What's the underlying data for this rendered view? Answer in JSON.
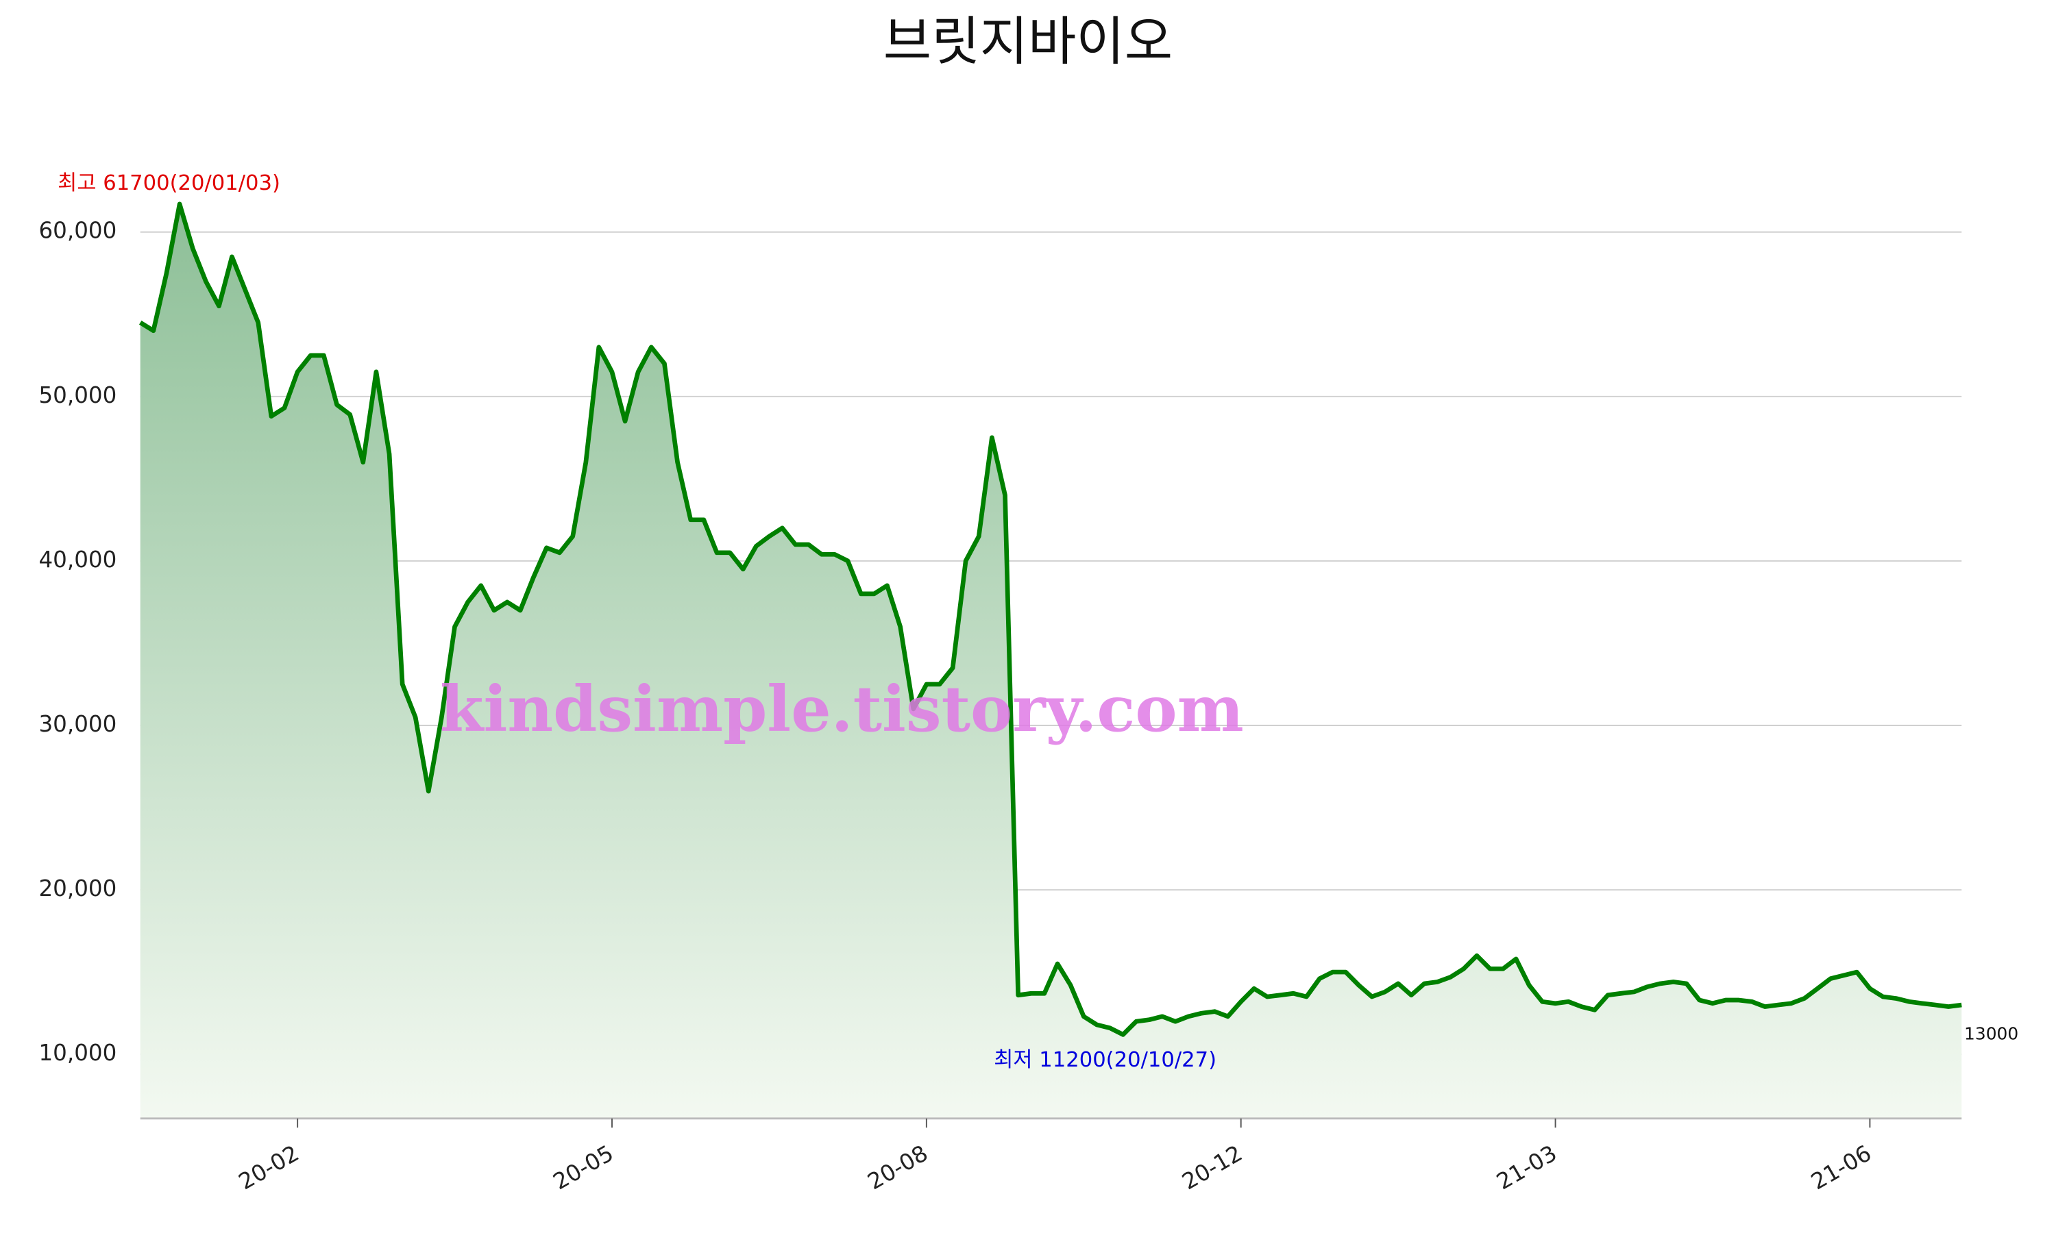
{
  "chart_data": {
    "type": "area",
    "title": "브릿지바이오",
    "values": [
      54500,
      54000,
      57500,
      61700,
      59000,
      57000,
      55500,
      58500,
      56500,
      54500,
      48800,
      49300,
      51500,
      52500,
      52500,
      49500,
      48900,
      46000,
      51500,
      46500,
      32500,
      30500,
      26000,
      30500,
      36000,
      37500,
      38500,
      37000,
      37500,
      37000,
      39000,
      40800,
      40500,
      41500,
      46000,
      53000,
      51500,
      48500,
      51500,
      53000,
      52000,
      46000,
      42500,
      42500,
      40500,
      40500,
      39500,
      40900,
      41500,
      42000,
      41000,
      41000,
      40400,
      40400,
      40000,
      38000,
      38000,
      38500,
      36000,
      31000,
      32500,
      32500,
      33500,
      40000,
      41500,
      47500,
      44000,
      13600,
      13700,
      13700,
      15500,
      14200,
      12300,
      11800,
      11600,
      11200,
      12000,
      12100,
      12300,
      12000,
      12300,
      12500,
      12600,
      12300,
      13200,
      14000,
      13500,
      13600,
      13700,
      13500,
      14600,
      15000,
      15000,
      14200,
      13500,
      13800,
      14300,
      13600,
      14300,
      14400,
      14700,
      15200,
      16000,
      15200,
      15200,
      15800,
      14200,
      13200,
      13100,
      13200,
      12900,
      12700,
      13600,
      13700,
      13800,
      14100,
      14300,
      14400,
      14300,
      13300,
      13100,
      13300,
      13300,
      13200,
      12900,
      13000,
      13100,
      13400,
      14000,
      14600,
      14800,
      15000,
      14000,
      13500,
      13400,
      13200,
      13100,
      13000,
      12900,
      13000
    ],
    "color": "#008000",
    "xlim": [
      0,
      139
    ],
    "xticks": [
      {
        "value": 12,
        "label": "20-02"
      },
      {
        "value": 36,
        "label": "20-05"
      },
      {
        "value": 60,
        "label": "20-08"
      },
      {
        "value": 84,
        "label": "20-12"
      },
      {
        "value": 108,
        "label": "21-03"
      },
      {
        "value": 132,
        "label": "21-06"
      }
    ],
    "ylim": [
      6100,
      63000
    ],
    "yticks": [
      {
        "value": 10000,
        "label": "10,000"
      },
      {
        "value": 20000,
        "label": "20,000"
      },
      {
        "value": 30000,
        "label": "30,000"
      },
      {
        "value": 40000,
        "label": "40,000"
      },
      {
        "value": 50000,
        "label": "50,000"
      },
      {
        "value": 60000,
        "label": "60,000"
      }
    ],
    "grid": true,
    "annotations": {
      "high": "최고 61700(20/01/03)",
      "low": "최저 11200(20/10/27)",
      "last": "13000"
    },
    "watermark": "kindsimple.tistory.com"
  }
}
